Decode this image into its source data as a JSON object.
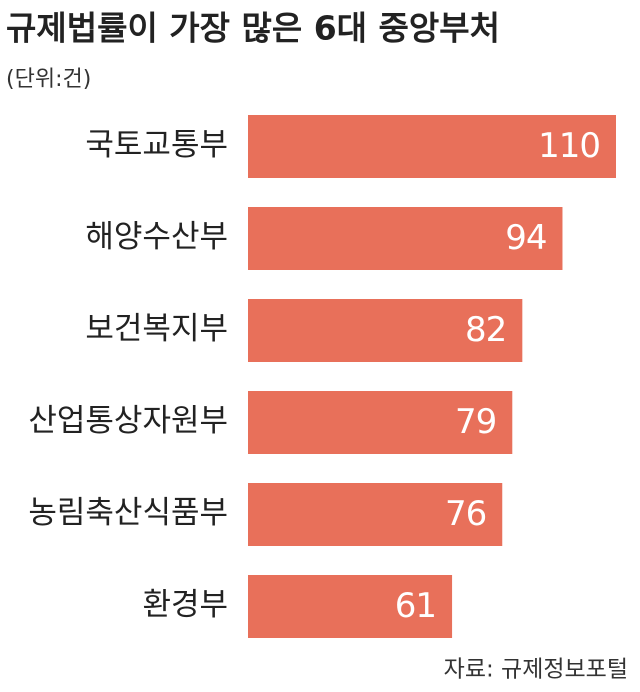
{
  "chart_data": {
    "type": "bar",
    "orientation": "horizontal",
    "title": "규제법률이 가장 많은 6대 중앙부처",
    "subtitle": "(단위:건)",
    "source": "자료: 규제정보포털",
    "categories": [
      "국토교통부",
      "해양수산부",
      "보건복지부",
      "산업통상자원부",
      "농림축산식품부",
      "환경부"
    ],
    "values": [
      110,
      94,
      82,
      79,
      76,
      61
    ],
    "color": "#e8705a"
  }
}
